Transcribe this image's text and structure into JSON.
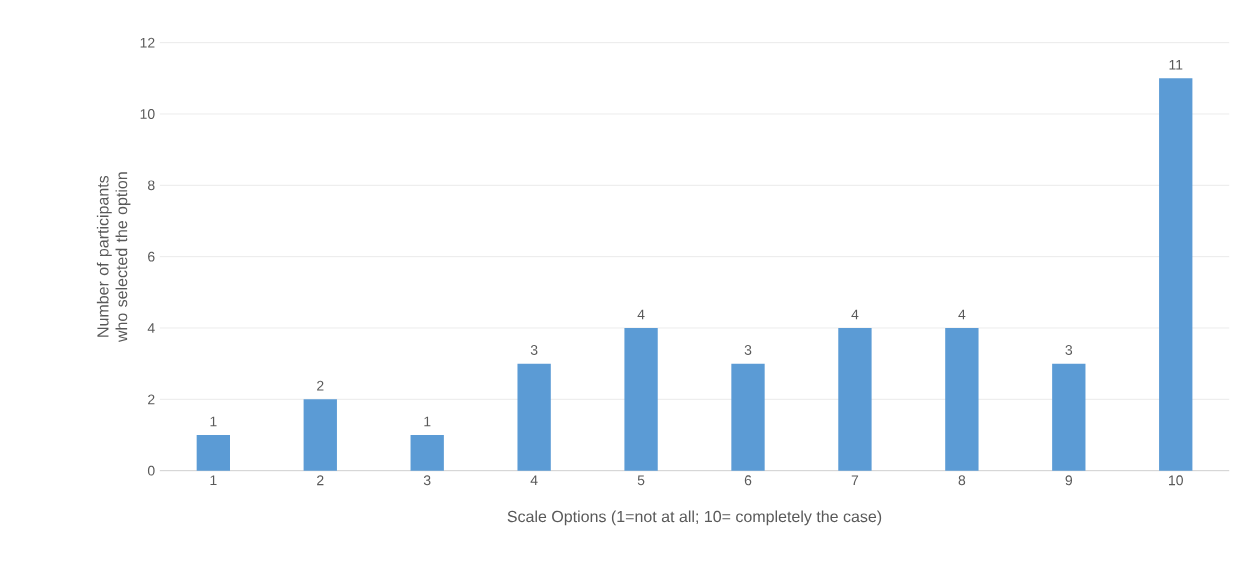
{
  "chart_data": {
    "type": "bar",
    "xlabel": "Scale Options (1=not at all; 10= completely the case)",
    "ylabel": "Number of participants who selected the option",
    "categories": [
      "1",
      "2",
      "3",
      "4",
      "5",
      "6",
      "7",
      "8",
      "9",
      "10"
    ],
    "values": [
      1,
      2,
      1,
      3,
      4,
      3,
      4,
      4,
      3,
      11
    ],
    "color": "#5b9bd5",
    "ylim": [
      0,
      12
    ],
    "yticks": [
      0,
      2,
      4,
      6,
      8,
      10,
      12
    ],
    "grid": "y",
    "data_labels": true
  }
}
